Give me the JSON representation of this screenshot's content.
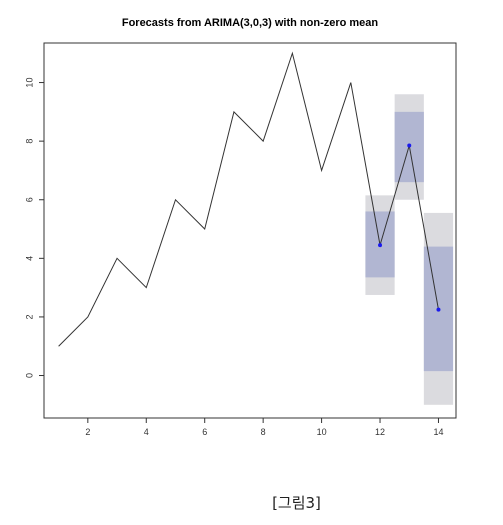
{
  "chart_data": {
    "type": "line",
    "title": "Forecasts from ARIMA(3,0,3) with non-zero mean",
    "xlabel": "",
    "ylabel": "",
    "xlim": [
      0.5,
      14.6
    ],
    "ylim": [
      -1.45,
      11.35
    ],
    "x_ticks": [
      2,
      4,
      6,
      8,
      10,
      12,
      14
    ],
    "y_ticks": [
      0,
      2,
      4,
      6,
      8,
      10
    ],
    "grid": false,
    "legend": "none",
    "series": [
      {
        "x": [
          1,
          2,
          3,
          4,
          5,
          6,
          7,
          8,
          9,
          10,
          11
        ],
        "values": [
          1,
          2,
          4,
          3,
          6,
          5,
          9,
          8,
          11,
          7,
          10
        ]
      },
      {
        "x": [
          11,
          12,
          13,
          14
        ],
        "values": [
          10,
          4.45,
          7.85,
          2.25
        ]
      }
    ],
    "forecast_points": {
      "x": [
        12,
        13,
        14
      ],
      "values": [
        4.45,
        7.85,
        2.25
      ]
    },
    "intervals_95": [
      {
        "x": 12,
        "low": 2.75,
        "high": 6.15
      },
      {
        "x": 13,
        "low": 6.0,
        "high": 9.6
      },
      {
        "x": 14,
        "low": -1.0,
        "high": 5.55
      }
    ],
    "intervals_80": [
      {
        "x": 12,
        "low": 3.35,
        "high": 5.6
      },
      {
        "x": 13,
        "low": 6.6,
        "high": 9.0
      },
      {
        "x": 14,
        "low": 0.15,
        "high": 4.4
      }
    ],
    "colors": {
      "history_line": "#333333",
      "interval_95": "#dbdbdf",
      "interval_80": "#b1b6d2",
      "forecast_point": "#1a1aee",
      "axis": "#333333"
    }
  },
  "caption": "[그림3]"
}
